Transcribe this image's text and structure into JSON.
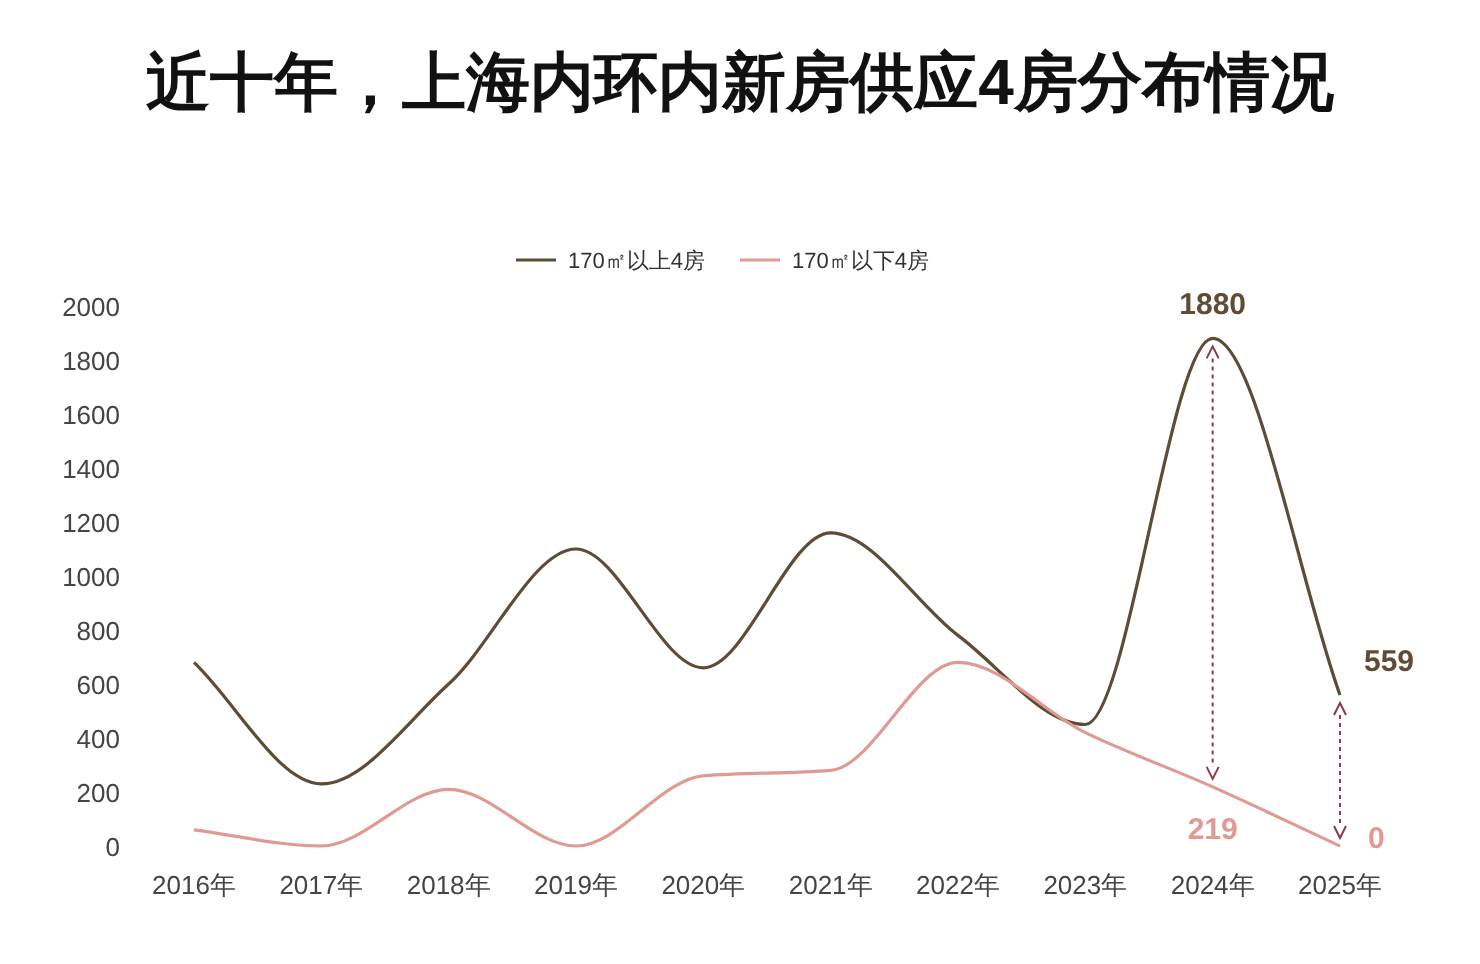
{
  "chart_data": {
    "type": "line",
    "title": "近十年，上海内环内新房供应4房分布情况",
    "categories": [
      "2016年",
      "2017年",
      "2018年",
      "2019年",
      "2020年",
      "2021年",
      "2022年",
      "2023年",
      "2024年",
      "2025年"
    ],
    "series": [
      {
        "name": "170㎡以上4房",
        "color": "#5e4c34",
        "values": [
          680,
          230,
          600,
          1100,
          660,
          1160,
          780,
          450,
          1880,
          559
        ],
        "value_labels": [
          null,
          null,
          null,
          null,
          null,
          null,
          null,
          null,
          "1880",
          "559"
        ]
      },
      {
        "name": "170㎡以下4房",
        "color": "#e09a92",
        "values": [
          60,
          0,
          210,
          0,
          260,
          280,
          680,
          420,
          219,
          0
        ],
        "value_labels": [
          null,
          null,
          null,
          null,
          null,
          null,
          null,
          null,
          "219",
          "0"
        ]
      }
    ],
    "ylim": [
      0,
      2000
    ],
    "yticks": [
      0,
      200,
      400,
      600,
      800,
      1000,
      1200,
      1400,
      1600,
      1800,
      2000
    ],
    "grid": false,
    "legend": "top",
    "marker": "none",
    "line_style": "solid"
  }
}
